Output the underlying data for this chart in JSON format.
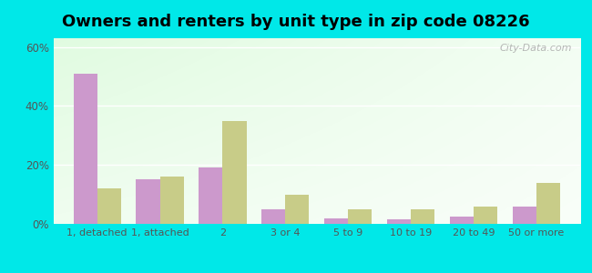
{
  "categories": [
    "1, detached",
    "1, attached",
    "2",
    "3 or 4",
    "5 to 9",
    "10 to 19",
    "20 to 49",
    "50 or more"
  ],
  "owner_values": [
    51,
    15,
    19,
    5,
    2,
    1.5,
    2.5,
    6
  ],
  "renter_values": [
    12,
    16,
    35,
    10,
    5,
    5,
    6,
    14
  ],
  "owner_color": "#cc99cc",
  "renter_color": "#c8cc88",
  "title": "Owners and renters by unit type in zip code 08226",
  "ylim": [
    0,
    63
  ],
  "yticks": [
    0,
    20,
    40,
    60
  ],
  "ytick_labels": [
    "0%",
    "20%",
    "40%",
    "60%"
  ],
  "outer_bg": "#00e8e8",
  "title_fontsize": 13,
  "bar_width": 0.38
}
